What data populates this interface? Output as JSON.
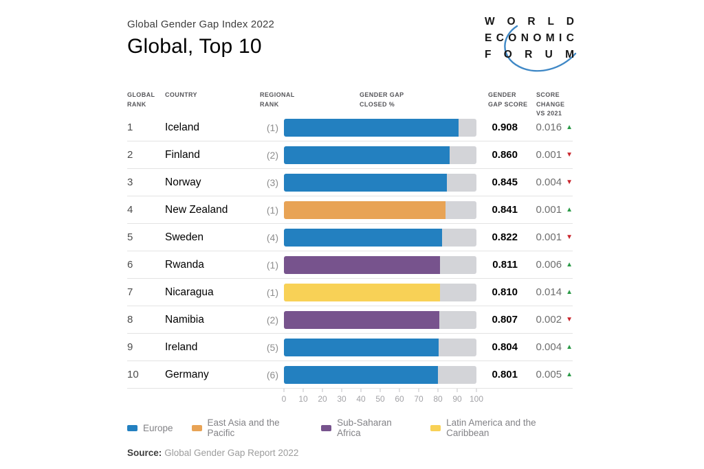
{
  "header": {
    "subtitle": "Global Gender Gap Index 2022",
    "title": "Global, Top 10"
  },
  "logo": {
    "lines": [
      "WORLD",
      "ECONOMIC",
      "FORUM"
    ],
    "arc_color": "#3f88c6"
  },
  "columns": [
    {
      "id": "global-rank",
      "label": "GLOBAL\nRANK"
    },
    {
      "id": "country",
      "label": "COUNTRY"
    },
    {
      "id": "regional-rank",
      "label": "REGIONAL\nRANK"
    },
    {
      "id": "gap-closed",
      "label": "GENDER GAP\nCLOSED %"
    },
    {
      "id": "gap-score",
      "label": "GENDER\nGAP SCORE"
    },
    {
      "id": "score-change",
      "label": "SCORE\nCHANGE\nVS 2021"
    }
  ],
  "chart_data": {
    "type": "bar",
    "title": "Global, Top 10",
    "subtitle": "Global Gender Gap Index 2022",
    "x_axis": {
      "min": 0,
      "max": 100,
      "ticks": [
        0,
        10,
        20,
        30,
        40,
        50,
        60,
        70,
        80,
        90,
        100
      ],
      "label": "GENDER GAP CLOSED %"
    },
    "rows": [
      {
        "global_rank": "1",
        "country": "Iceland",
        "regional_rank": "(1)",
        "region": "Europe",
        "gap_closed_pct": 90.8,
        "score": "0.908",
        "change": "0.016",
        "change_direction": "up"
      },
      {
        "global_rank": "2",
        "country": "Finland",
        "regional_rank": "(2)",
        "region": "Europe",
        "gap_closed_pct": 86.0,
        "score": "0.860",
        "change": "0.001",
        "change_direction": "down"
      },
      {
        "global_rank": "3",
        "country": "Norway",
        "regional_rank": "(3)",
        "region": "Europe",
        "gap_closed_pct": 84.5,
        "score": "0.845",
        "change": "0.004",
        "change_direction": "down"
      },
      {
        "global_rank": "4",
        "country": "New Zealand",
        "regional_rank": "(1)",
        "region": "East Asia and the Pacific",
        "gap_closed_pct": 84.1,
        "score": "0.841",
        "change": "0.001",
        "change_direction": "up"
      },
      {
        "global_rank": "5",
        "country": "Sweden",
        "regional_rank": "(4)",
        "region": "Europe",
        "gap_closed_pct": 82.2,
        "score": "0.822",
        "change": "0.001",
        "change_direction": "down"
      },
      {
        "global_rank": "6",
        "country": "Rwanda",
        "regional_rank": "(1)",
        "region": "Sub-Saharan Africa",
        "gap_closed_pct": 81.1,
        "score": "0.811",
        "change": "0.006",
        "change_direction": "up"
      },
      {
        "global_rank": "7",
        "country": "Nicaragua",
        "regional_rank": "(1)",
        "region": "Latin America and the Caribbean",
        "gap_closed_pct": 81.0,
        "score": "0.810",
        "change": "0.014",
        "change_direction": "up"
      },
      {
        "global_rank": "8",
        "country": "Namibia",
        "regional_rank": "(2)",
        "region": "Sub-Saharan Africa",
        "gap_closed_pct": 80.7,
        "score": "0.807",
        "change": "0.002",
        "change_direction": "down"
      },
      {
        "global_rank": "9",
        "country": "Ireland",
        "regional_rank": "(5)",
        "region": "Europe",
        "gap_closed_pct": 80.4,
        "score": "0.804",
        "change": "0.004",
        "change_direction": "up"
      },
      {
        "global_rank": "10",
        "country": "Germany",
        "regional_rank": "(6)",
        "region": "Europe",
        "gap_closed_pct": 80.1,
        "score": "0.801",
        "change": "0.005",
        "change_direction": "up"
      }
    ],
    "legend": [
      {
        "label": "Europe",
        "color": "#2380c0"
      },
      {
        "label": "East Asia and the Pacific",
        "color": "#e8a355"
      },
      {
        "label": "Sub-Saharan Africa",
        "color": "#77538d"
      },
      {
        "label": "Latin America and the Caribbean",
        "color": "#f8d156"
      }
    ],
    "legend_position": "bottom",
    "track_color": "#d3d4d8",
    "change_up_color": "#2b9a47",
    "change_down_color": "#c9252c"
  },
  "icons": {
    "up_triangle": "▲",
    "down_triangle": "▼"
  },
  "source": {
    "label": "Source:",
    "text": "Global Gender Gap Report 2022"
  }
}
